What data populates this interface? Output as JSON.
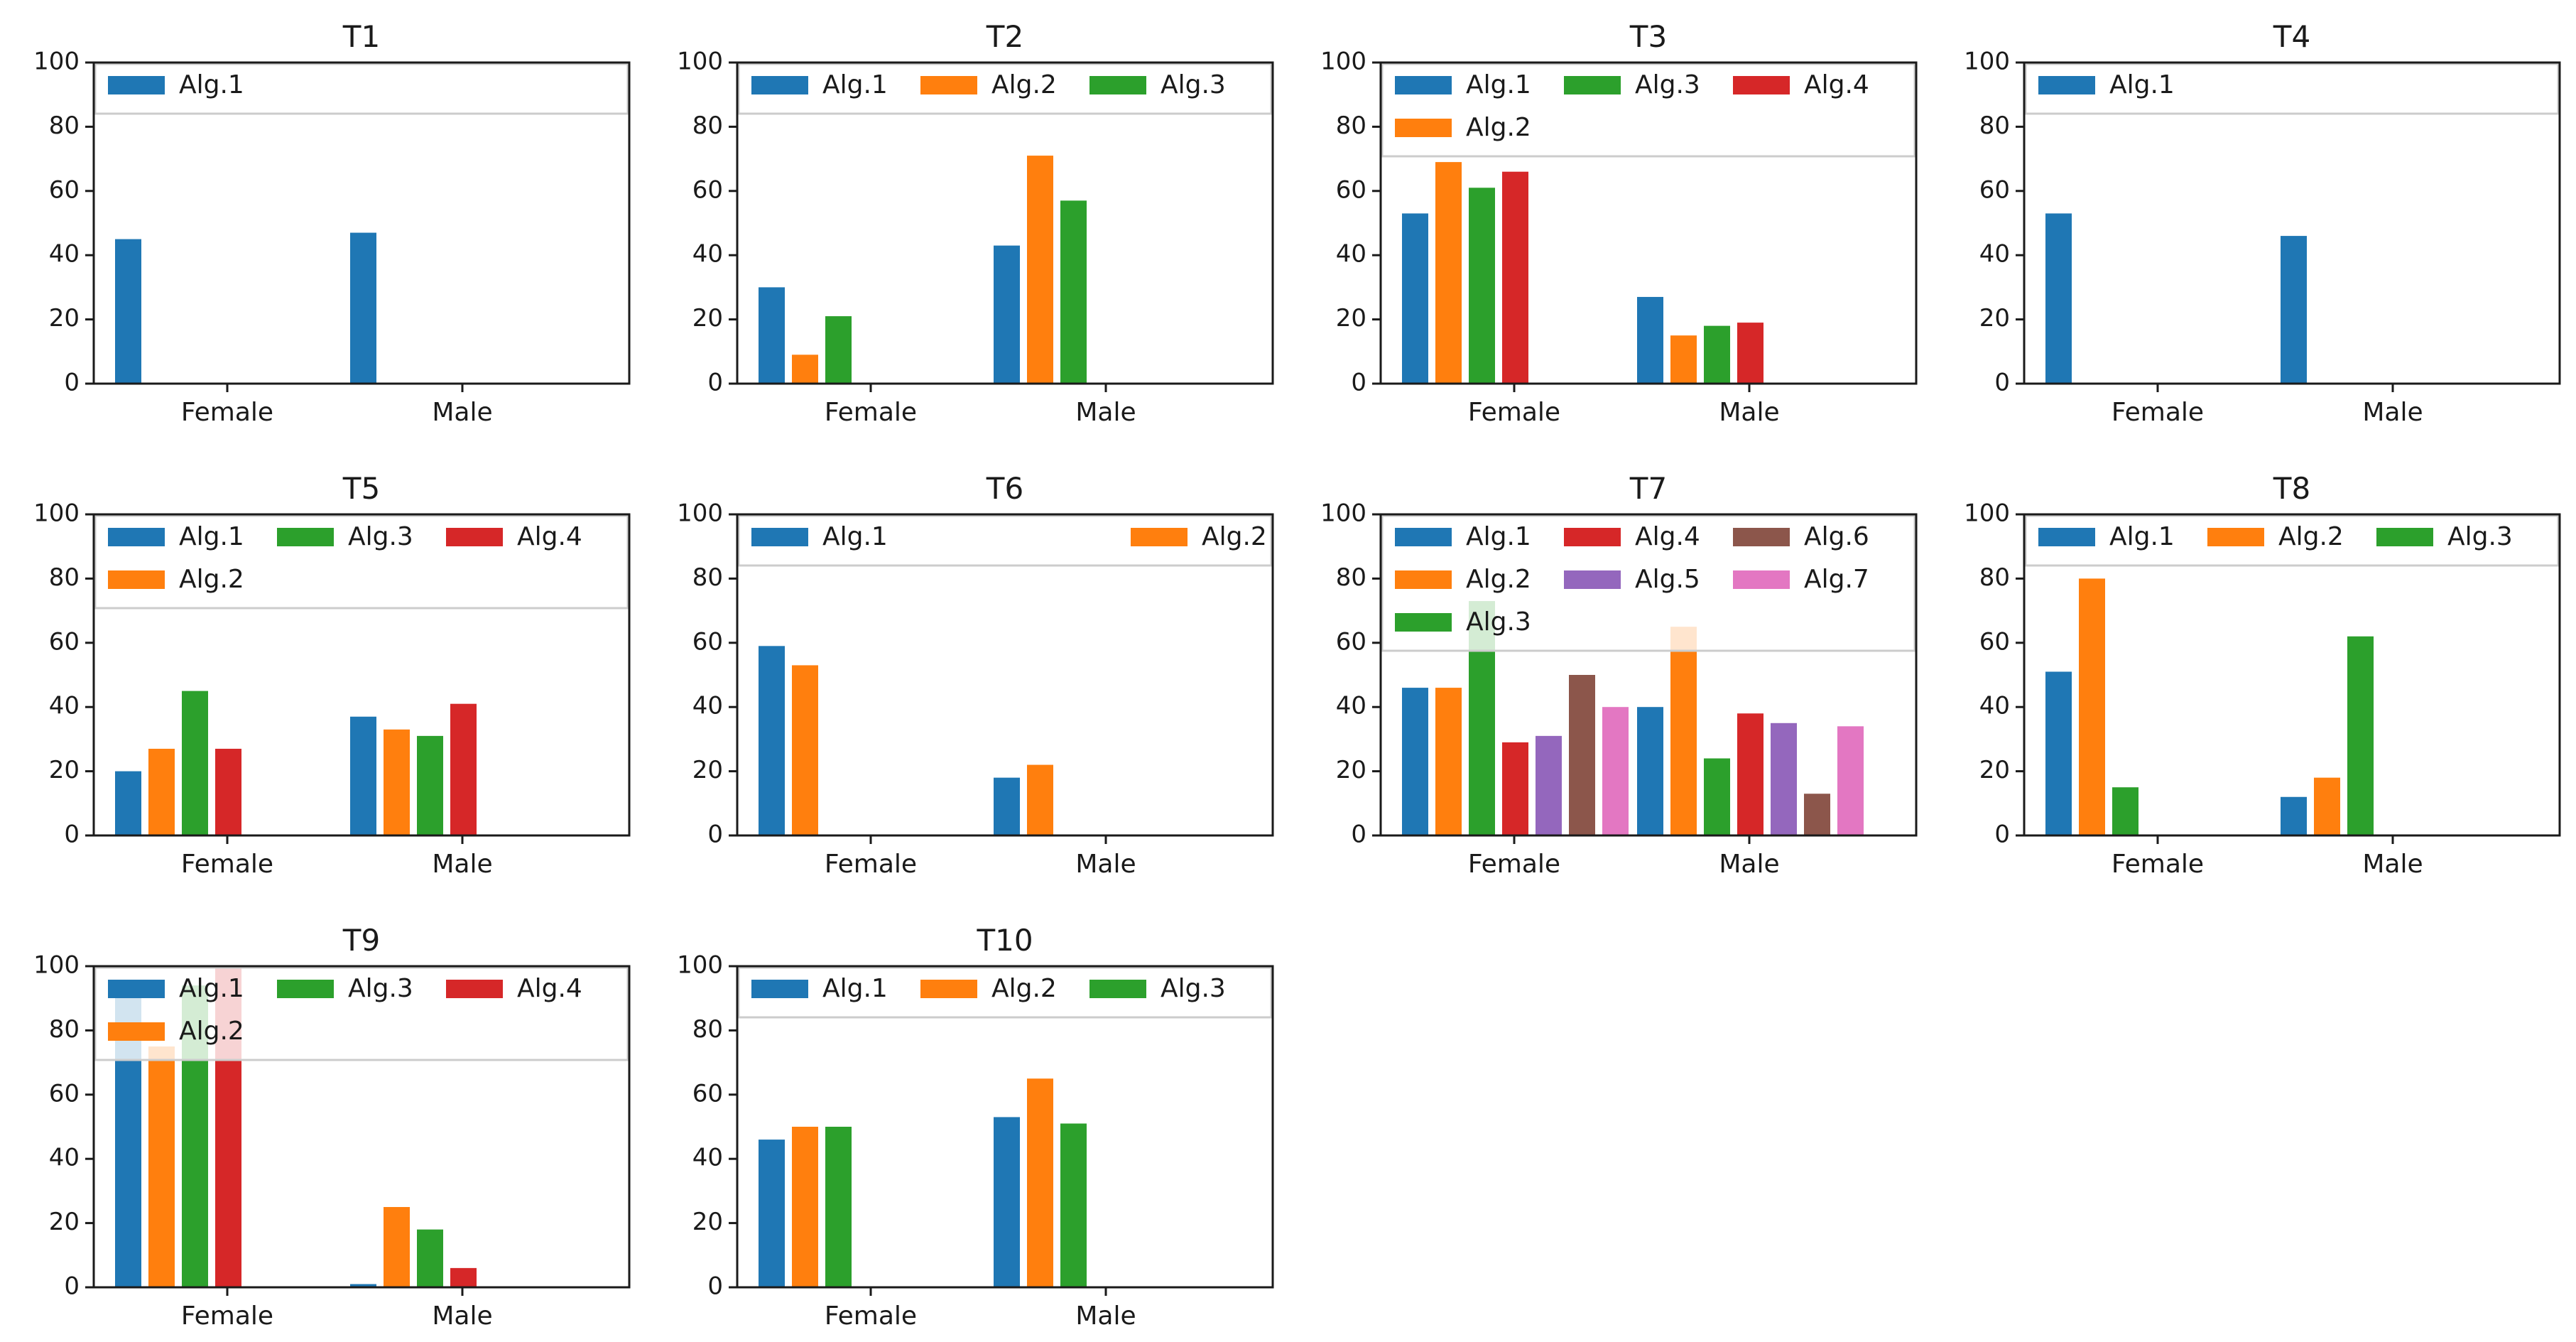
{
  "colors": {
    "Alg.1": "#1f77b4",
    "Alg.2": "#ff7f0e",
    "Alg.3": "#2ca02c",
    "Alg.4": "#d62728",
    "Alg.5": "#9467bd",
    "Alg.6": "#8c564b",
    "Alg.7": "#e377c2"
  },
  "chart_data": [
    {
      "type": "bar",
      "title": "T1",
      "categories": [
        "Female",
        "Male"
      ],
      "ylim": [
        0,
        100
      ],
      "yticks": [
        0,
        20,
        40,
        60,
        80,
        100
      ],
      "legend": {
        "position": "top",
        "rows": [
          [
            "Alg.1"
          ]
        ]
      },
      "series": [
        {
          "name": "Alg.1",
          "values": [
            45,
            47
          ]
        }
      ]
    },
    {
      "type": "bar",
      "title": "T2",
      "categories": [
        "Female",
        "Male"
      ],
      "ylim": [
        0,
        100
      ],
      "yticks": [
        0,
        20,
        40,
        60,
        80,
        100
      ],
      "legend": {
        "position": "top",
        "rows": [
          [
            "Alg.1",
            "Alg.2",
            "Alg.3"
          ]
        ]
      },
      "series": [
        {
          "name": "Alg.1",
          "values": [
            30,
            43
          ]
        },
        {
          "name": "Alg.2",
          "values": [
            9,
            71
          ]
        },
        {
          "name": "Alg.3",
          "values": [
            21,
            57
          ]
        }
      ]
    },
    {
      "type": "bar",
      "title": "T3",
      "categories": [
        "Female",
        "Male"
      ],
      "ylim": [
        0,
        100
      ],
      "yticks": [
        0,
        20,
        40,
        60,
        80,
        100
      ],
      "legend": {
        "position": "top",
        "rows": [
          [
            "Alg.1",
            "Alg.3",
            "Alg.4"
          ],
          [
            "Alg.2"
          ]
        ]
      },
      "series": [
        {
          "name": "Alg.1",
          "values": [
            53,
            27
          ]
        },
        {
          "name": "Alg.2",
          "values": [
            69,
            15
          ]
        },
        {
          "name": "Alg.3",
          "values": [
            61,
            18
          ]
        },
        {
          "name": "Alg.4",
          "values": [
            66,
            19
          ]
        }
      ]
    },
    {
      "type": "bar",
      "title": "T4",
      "categories": [
        "Female",
        "Male"
      ],
      "ylim": [
        0,
        100
      ],
      "yticks": [
        0,
        20,
        40,
        60,
        80,
        100
      ],
      "legend": {
        "position": "top",
        "rows": [
          [
            "Alg.1"
          ]
        ]
      },
      "series": [
        {
          "name": "Alg.1",
          "values": [
            53,
            46
          ]
        }
      ]
    },
    {
      "type": "bar",
      "title": "T5",
      "categories": [
        "Female",
        "Male"
      ],
      "ylim": [
        0,
        100
      ],
      "yticks": [
        0,
        20,
        40,
        60,
        80,
        100
      ],
      "legend": {
        "position": "top",
        "rows": [
          [
            "Alg.1",
            "Alg.3",
            "Alg.4"
          ],
          [
            "Alg.2"
          ]
        ]
      },
      "series": [
        {
          "name": "Alg.1",
          "values": [
            20,
            37
          ]
        },
        {
          "name": "Alg.2",
          "values": [
            27,
            33
          ]
        },
        {
          "name": "Alg.3",
          "values": [
            45,
            31
          ]
        },
        {
          "name": "Alg.4",
          "values": [
            27,
            41
          ]
        }
      ]
    },
    {
      "type": "bar",
      "title": "T6",
      "categories": [
        "Female",
        "Male"
      ],
      "ylim": [
        0,
        100
      ],
      "yticks": [
        0,
        20,
        40,
        60,
        80,
        100
      ],
      "legend": {
        "position": "top",
        "rows": [
          [
            "Alg.1",
            "Alg.2"
          ]
        ]
      },
      "series": [
        {
          "name": "Alg.1",
          "values": [
            59,
            18
          ]
        },
        {
          "name": "Alg.2",
          "values": [
            53,
            22
          ]
        }
      ]
    },
    {
      "type": "bar",
      "title": "T7",
      "categories": [
        "Female",
        "Male"
      ],
      "ylim": [
        0,
        100
      ],
      "yticks": [
        0,
        20,
        40,
        60,
        80,
        100
      ],
      "legend": {
        "position": "top",
        "rows": [
          [
            "Alg.1",
            "Alg.4",
            "Alg.6"
          ],
          [
            "Alg.2",
            "Alg.5",
            "Alg.7"
          ],
          [
            "Alg.3"
          ]
        ]
      },
      "series": [
        {
          "name": "Alg.1",
          "values": [
            46,
            40
          ]
        },
        {
          "name": "Alg.2",
          "values": [
            46,
            65
          ]
        },
        {
          "name": "Alg.3",
          "values": [
            73,
            24
          ]
        },
        {
          "name": "Alg.4",
          "values": [
            29,
            38
          ]
        },
        {
          "name": "Alg.5",
          "values": [
            31,
            35
          ]
        },
        {
          "name": "Alg.6",
          "values": [
            50,
            13
          ]
        },
        {
          "name": "Alg.7",
          "values": [
            40,
            34
          ]
        }
      ]
    },
    {
      "type": "bar",
      "title": "T8",
      "categories": [
        "Female",
        "Male"
      ],
      "ylim": [
        0,
        100
      ],
      "yticks": [
        0,
        20,
        40,
        60,
        80,
        100
      ],
      "legend": {
        "position": "top",
        "rows": [
          [
            "Alg.1",
            "Alg.2",
            "Alg.3"
          ]
        ]
      },
      "series": [
        {
          "name": "Alg.1",
          "values": [
            51,
            12
          ]
        },
        {
          "name": "Alg.2",
          "values": [
            80,
            18
          ]
        },
        {
          "name": "Alg.3",
          "values": [
            15,
            62
          ]
        }
      ]
    },
    {
      "type": "bar",
      "title": "T9",
      "categories": [
        "Female",
        "Male"
      ],
      "ylim": [
        0,
        100
      ],
      "yticks": [
        0,
        20,
        40,
        60,
        80,
        100
      ],
      "legend": {
        "position": "top",
        "rows": [
          [
            "Alg.1",
            "Alg.3",
            "Alg.4"
          ],
          [
            "Alg.2"
          ]
        ]
      },
      "series": [
        {
          "name": "Alg.1",
          "values": [
            91,
            1
          ]
        },
        {
          "name": "Alg.2",
          "values": [
            75,
            25
          ]
        },
        {
          "name": "Alg.3",
          "values": [
            94,
            18
          ]
        },
        {
          "name": "Alg.4",
          "values": [
            100,
            6
          ]
        }
      ]
    },
    {
      "type": "bar",
      "title": "T10",
      "categories": [
        "Female",
        "Male"
      ],
      "ylim": [
        0,
        100
      ],
      "yticks": [
        0,
        20,
        40,
        60,
        80,
        100
      ],
      "legend": {
        "position": "top",
        "rows": [
          [
            "Alg.1",
            "Alg.2",
            "Alg.3"
          ]
        ]
      },
      "series": [
        {
          "name": "Alg.1",
          "values": [
            46,
            53
          ]
        },
        {
          "name": "Alg.2",
          "values": [
            50,
            65
          ]
        },
        {
          "name": "Alg.3",
          "values": [
            50,
            51
          ]
        }
      ]
    }
  ]
}
